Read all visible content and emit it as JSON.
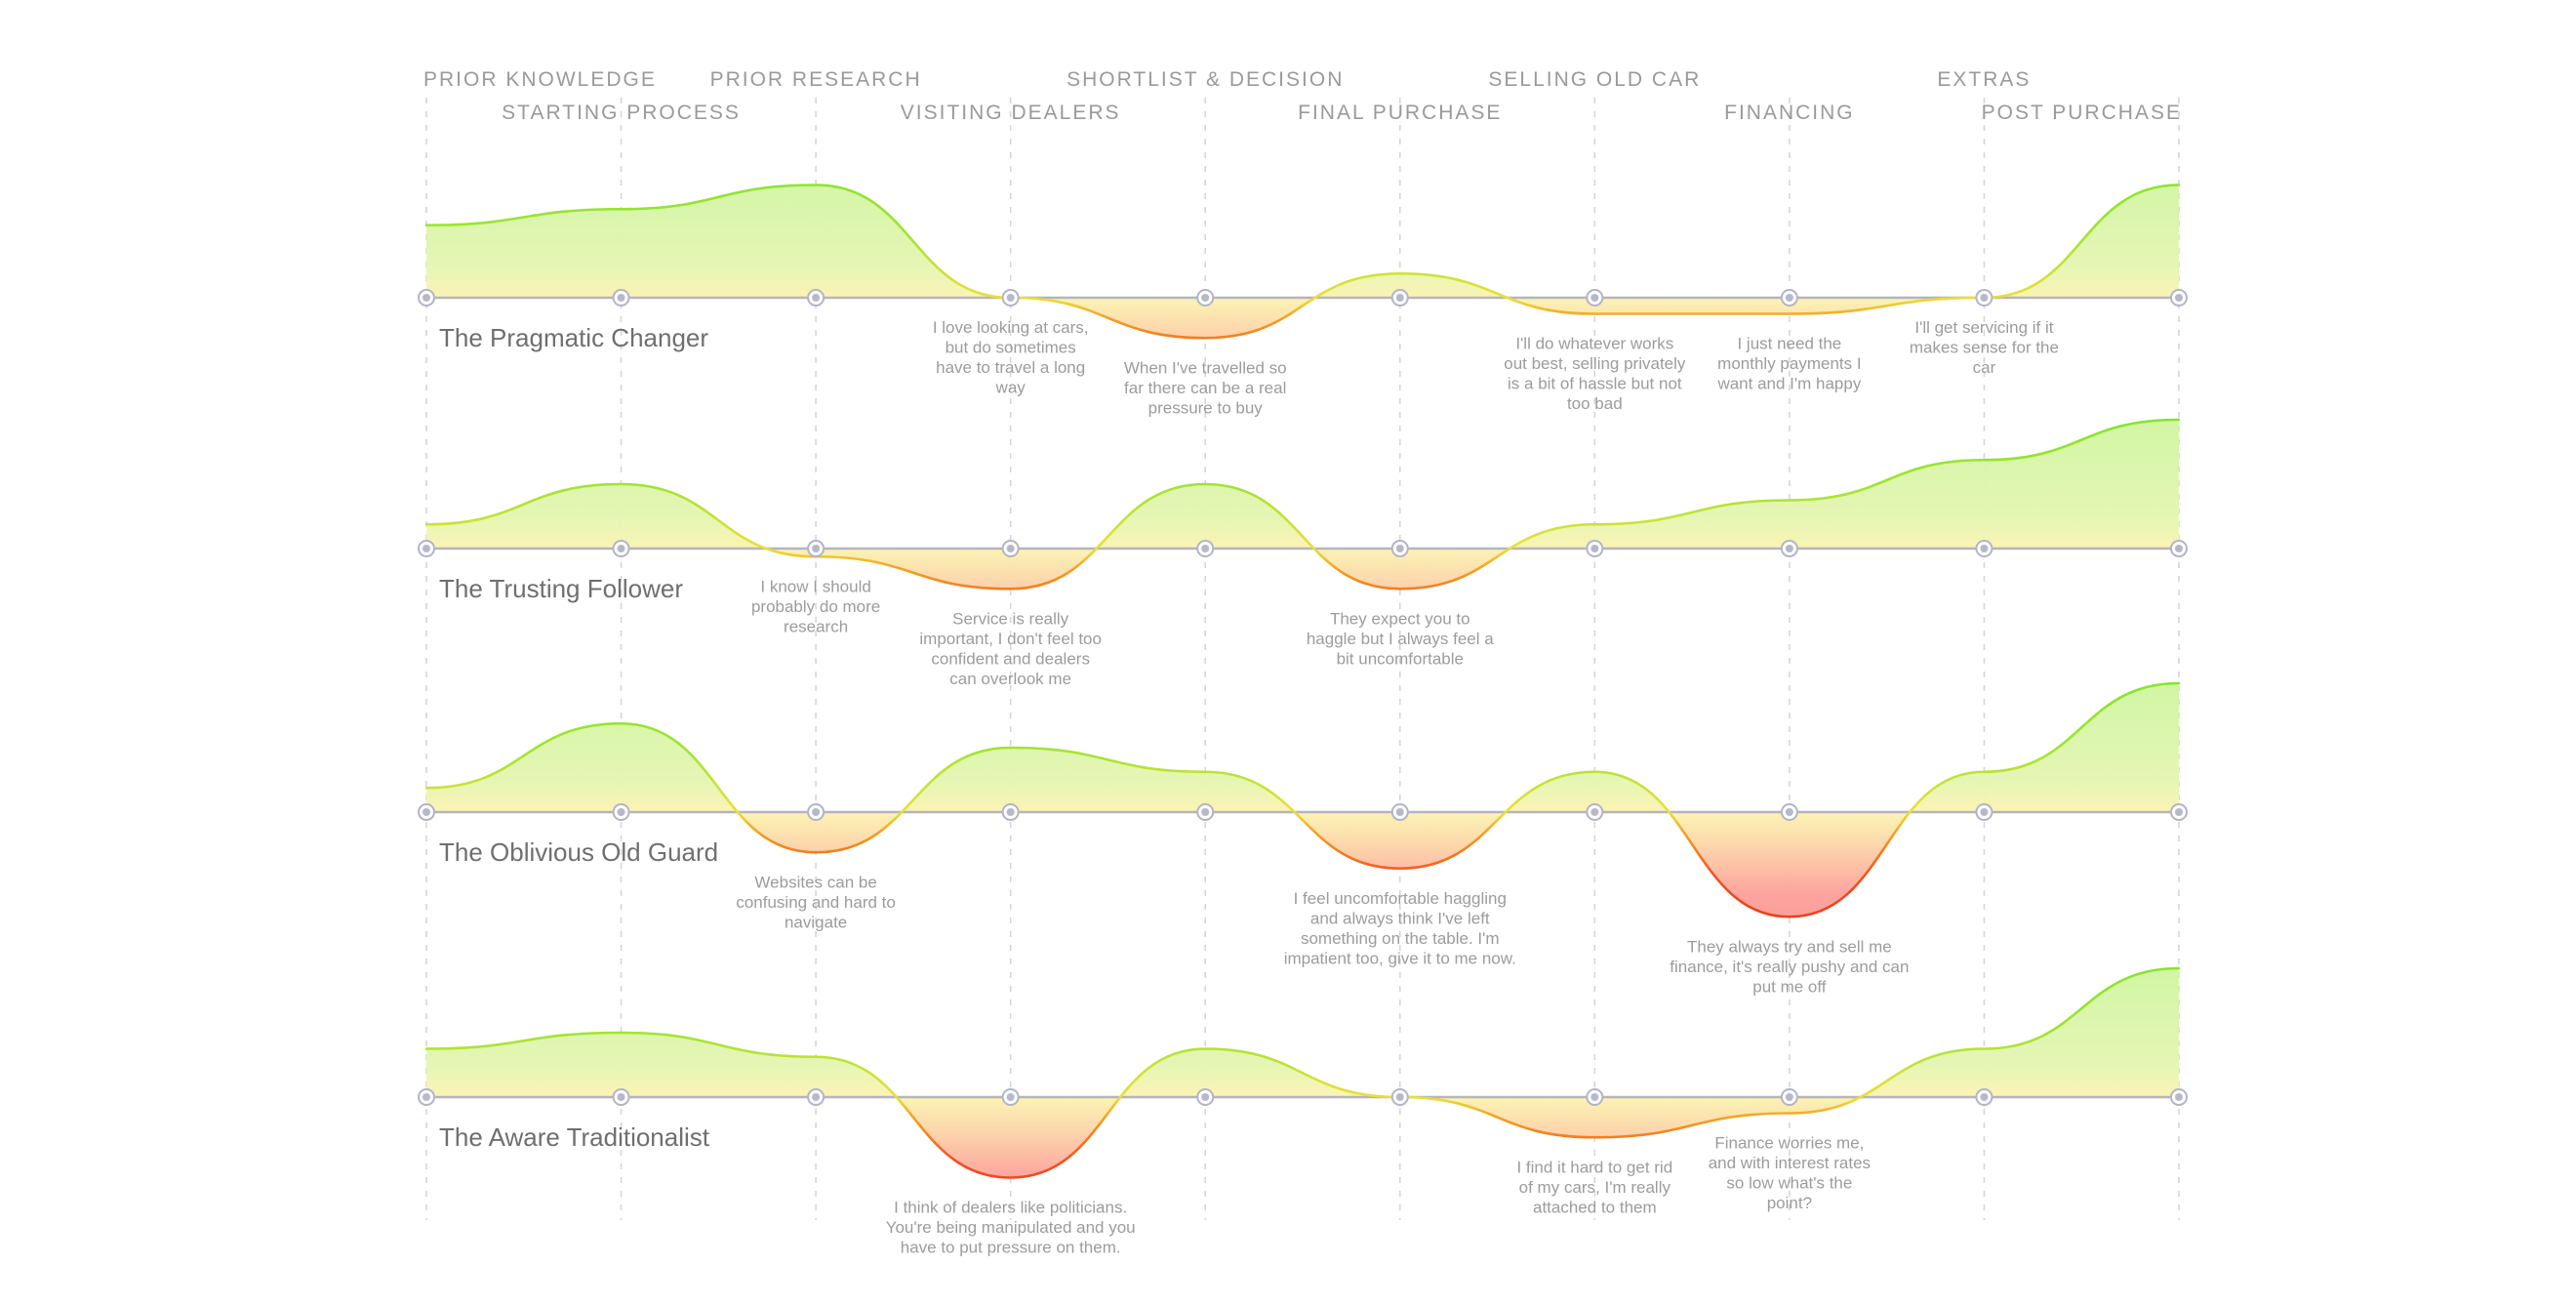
{
  "colors": {
    "positive": "#7be32c",
    "neutral": "#eadf3a",
    "negative": "#f3501f",
    "fill_positive": "#c8f59a",
    "fill_neutral": "#fbf3b0",
    "fill_negative": "#fda09a",
    "baseline": "#b5b5bd",
    "gridline": "#d4d4d4",
    "text_muted": "#9a9a9a"
  },
  "chart_data": {
    "type": "area",
    "title": "",
    "stages": [
      "PRIOR KNOWLEDGE",
      "STARTING PROCESS",
      "PRIOR RESEARCH",
      "VISITING DEALERS",
      "SHORTLIST & DECISION",
      "FINAL PURCHASE",
      "SELLING OLD CAR",
      "FINANCING",
      "EXTRAS",
      "POST PURCHASE"
    ],
    "y_range": [
      -10,
      10
    ],
    "series": [
      {
        "name": "The Pragmatic Changer",
        "values": [
          4.5,
          5.5,
          7.0,
          0.0,
          -2.5,
          1.5,
          -1.0,
          -1.0,
          0.0,
          7.0
        ],
        "annotations": [
          {
            "stage": 3,
            "below": true,
            "lines": [
              "I love looking at cars,",
              "but do sometimes",
              "have to travel a long",
              "way"
            ]
          },
          {
            "stage": 4,
            "below": true,
            "lines": [
              "When I've travelled so",
              "far there can be a real",
              "pressure to buy"
            ]
          },
          {
            "stage": 6,
            "below": true,
            "lines": [
              "I'll do whatever works",
              "out best, selling privately",
              "is a bit of hassle but not",
              "too bad"
            ]
          },
          {
            "stage": 7,
            "below": true,
            "lines": [
              "I just need the",
              "monthly payments I",
              "want and I'm happy"
            ]
          },
          {
            "stage": 8,
            "below": true,
            "lines": [
              "I'll get servicing if it",
              "makes sense for the",
              "car"
            ]
          }
        ]
      },
      {
        "name": "The Trusting Follower",
        "values": [
          1.5,
          4.0,
          -0.5,
          -2.5,
          4.0,
          -2.5,
          1.5,
          3.0,
          5.5,
          8.0
        ],
        "annotations": [
          {
            "stage": 2,
            "below": true,
            "lines": [
              "I know I should",
              "probably do more",
              "research"
            ]
          },
          {
            "stage": 3,
            "below": true,
            "lines": [
              "Service is really",
              "important, I don't feel too",
              "confident and dealers",
              "can overlook me"
            ]
          },
          {
            "stage": 5,
            "below": true,
            "lines": [
              "They expect you to",
              "haggle but I always feel a",
              "bit uncomfortable"
            ]
          }
        ]
      },
      {
        "name": "The Oblivious Old Guard",
        "values": [
          1.5,
          5.5,
          -2.5,
          4.0,
          2.5,
          -3.5,
          2.5,
          -6.5,
          2.5,
          8.0
        ],
        "annotations": [
          {
            "stage": 2,
            "below": true,
            "lines": [
              "Websites can be",
              "confusing and hard to",
              "navigate"
            ]
          },
          {
            "stage": 5,
            "below": true,
            "lines": [
              "I feel uncomfortable haggling",
              "and always think I've left",
              "something on the table. I'm",
              "impatient too, give it to me now."
            ]
          },
          {
            "stage": 7,
            "below": true,
            "lines": [
              "They always try and sell me",
              "finance, it's really pushy and can",
              "put me off"
            ]
          }
        ]
      },
      {
        "name": "The Aware Traditionalist",
        "values": [
          3.0,
          4.0,
          2.5,
          -5.0,
          3.0,
          0.0,
          -2.5,
          -1.0,
          3.0,
          8.0
        ],
        "annotations": [
          {
            "stage": 3,
            "below": true,
            "lines": [
              "I think of dealers like politicians.",
              "You're being manipulated and you",
              "have to put pressure on them."
            ]
          },
          {
            "stage": 6,
            "below": true,
            "lines": [
              "I find it hard to get rid",
              "of my cars, I'm really",
              "attached to them"
            ]
          },
          {
            "stage": 7,
            "below": true,
            "lines": [
              "Finance worries me,",
              "and with interest rates",
              "so low what's the",
              "point?"
            ]
          }
        ]
      }
    ]
  }
}
